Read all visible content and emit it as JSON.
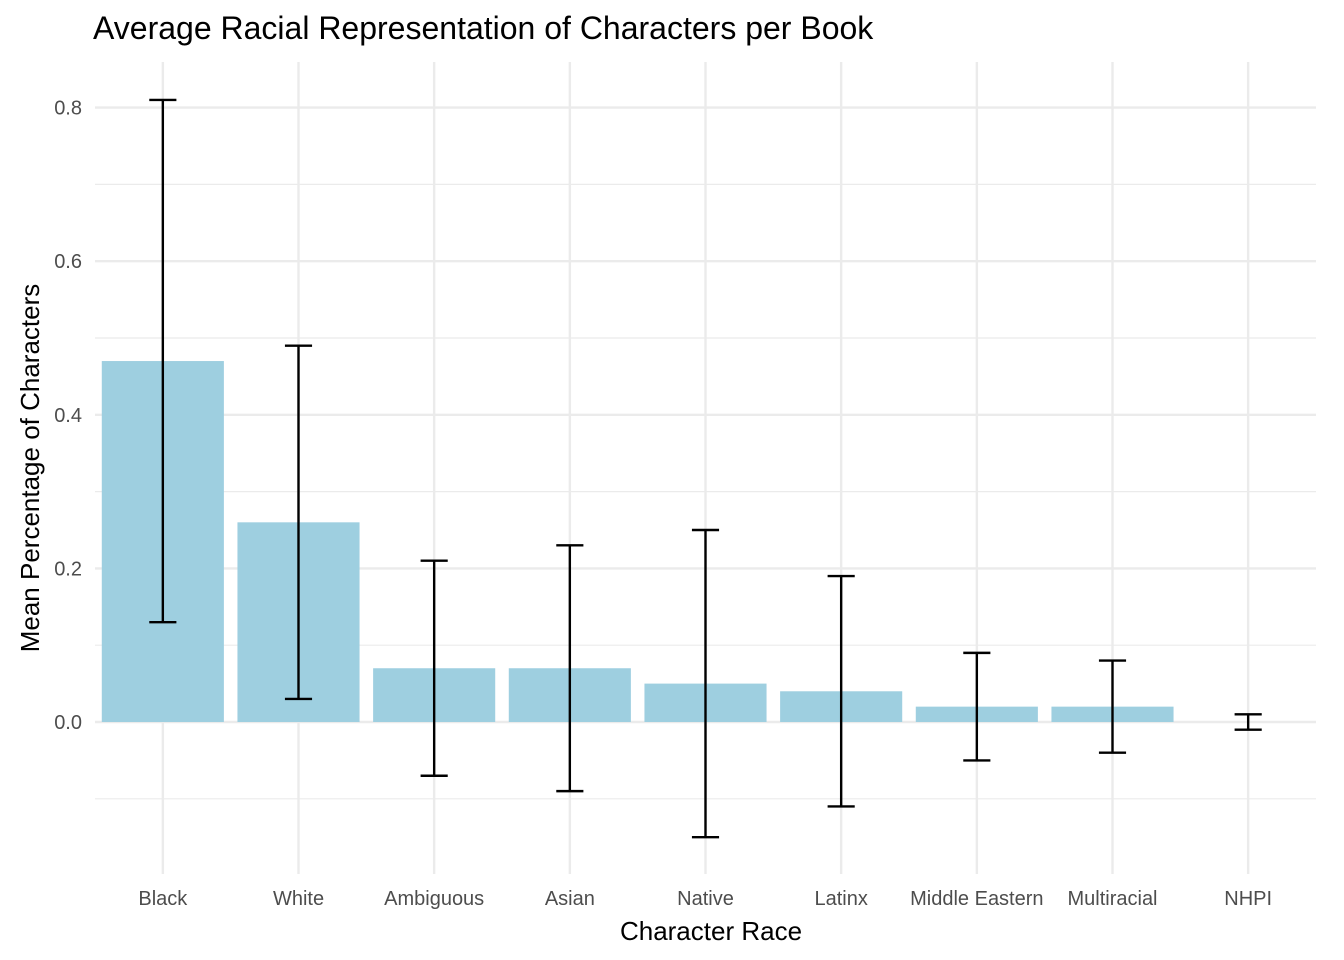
{
  "chart_data": {
    "type": "bar",
    "title": "Average Racial Representation of Characters per Book",
    "xlabel": "Character Race",
    "ylabel": "Mean Percentage of Characters",
    "categories": [
      "Black",
      "White",
      "Ambiguous",
      "Asian",
      "Native",
      "Latinx",
      "Middle Eastern",
      "Multiracial",
      "NHPI"
    ],
    "values": [
      0.47,
      0.26,
      0.07,
      0.07,
      0.05,
      0.04,
      0.02,
      0.02,
      0.0
    ],
    "error_low": [
      0.13,
      0.03,
      -0.07,
      -0.09,
      -0.15,
      -0.11,
      -0.05,
      -0.04,
      -0.01
    ],
    "error_high": [
      0.81,
      0.49,
      0.21,
      0.23,
      0.25,
      0.19,
      0.09,
      0.08,
      0.01
    ],
    "ylim": [
      -0.19,
      0.855
    ],
    "yticks": [
      "0.0",
      "0.2",
      "0.4",
      "0.6",
      "0.8"
    ],
    "ytick_values": [
      0.0,
      0.2,
      0.4,
      0.6,
      0.8
    ],
    "grid": true,
    "legend": "none",
    "bar_color": "#9ecfe0",
    "error_color": "#000000",
    "grid_color": "#ebebeb"
  }
}
